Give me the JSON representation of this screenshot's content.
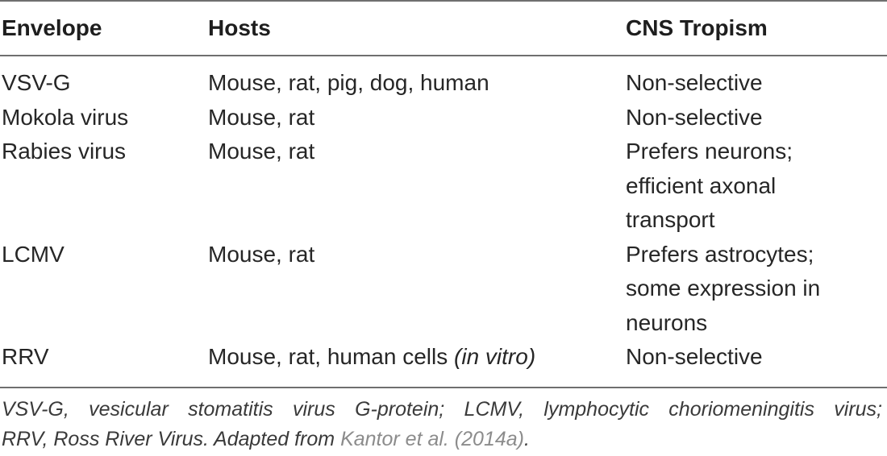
{
  "table": {
    "headers": [
      "Envelope",
      "Hosts",
      "CNS Tropism"
    ],
    "rows": [
      {
        "envelope": "VSV-G",
        "hosts": "Mouse, rat, pig, dog, human",
        "hosts_italic": "",
        "tropism": [
          "Non-selective"
        ]
      },
      {
        "envelope": "Mokola virus",
        "hosts": "Mouse, rat",
        "hosts_italic": "",
        "tropism": [
          "Non-selective"
        ]
      },
      {
        "envelope": "Rabies virus",
        "hosts": "Mouse, rat",
        "hosts_italic": "",
        "tropism": [
          "Prefers neurons;",
          "efficient axonal",
          "transport"
        ]
      },
      {
        "envelope": "LCMV",
        "hosts": "Mouse, rat",
        "hosts_italic": "",
        "tropism": [
          "Prefers astrocytes;",
          "some expression in",
          "neurons"
        ]
      },
      {
        "envelope": "RRV",
        "hosts": "Mouse, rat, human cells ",
        "hosts_italic": "(in vitro)",
        "tropism": [
          "Non-selective"
        ]
      }
    ]
  },
  "footnote": {
    "line1": "VSV-G, vesicular stomatitis virus G-protein; LCMV, lymphocytic choriomeningitis virus;",
    "line2_prefix": "RRV, Ross River Virus. Adapted from ",
    "reference_link": "Kantor et al. (2014a)",
    "line2_suffix": "."
  }
}
